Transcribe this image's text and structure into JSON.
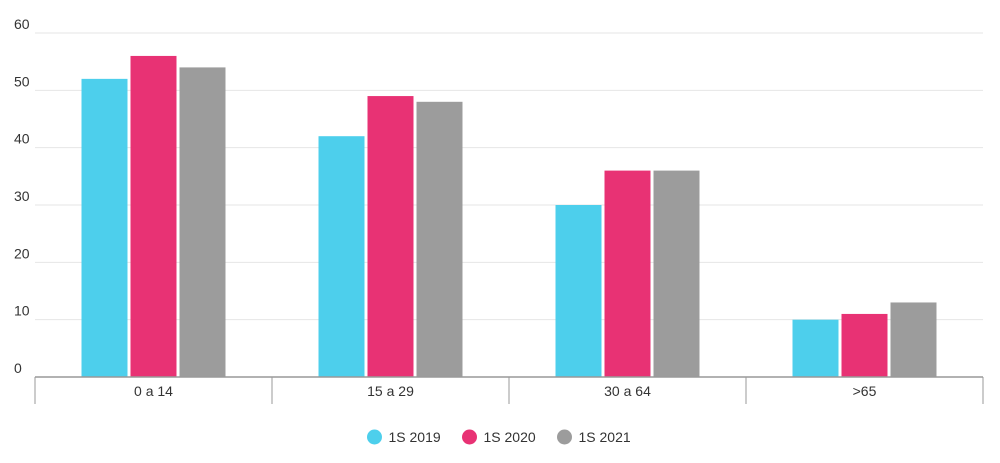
{
  "chart_data": {
    "type": "bar",
    "title": "",
    "xlabel": "",
    "ylabel": "",
    "categories": [
      "0 a 14",
      "15 a 29",
      "30 a 64",
      ">65"
    ],
    "series": [
      {
        "name": "1S 2019",
        "color": "#4dcfec",
        "values": [
          52,
          42,
          30,
          10
        ]
      },
      {
        "name": "1S 2020",
        "color": "#e83274",
        "values": [
          56,
          49,
          36,
          11
        ]
      },
      {
        "name": "1S 2021",
        "color": "#9c9c9c",
        "values": [
          54,
          48,
          36,
          13
        ]
      }
    ],
    "yticks": [
      "0",
      "10",
      "20",
      "30",
      "40",
      "50",
      "60"
    ],
    "ylim": [
      0,
      60
    ],
    "grid": true,
    "legend": "bottom-center"
  }
}
